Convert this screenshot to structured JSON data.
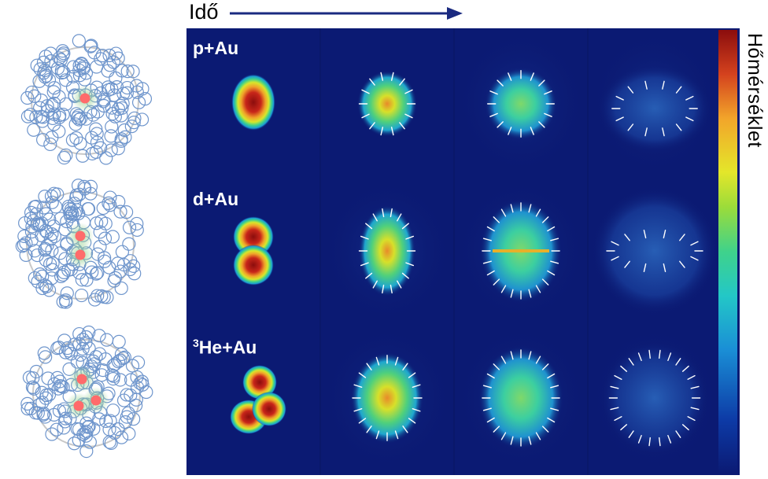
{
  "time_axis": {
    "label": "Idő"
  },
  "colorbar": {
    "label": "Hőmérséklet"
  },
  "rows": [
    {
      "label": "p+Au",
      "label_sup": ""
    },
    {
      "label": "d+Au",
      "label_sup": ""
    },
    {
      "label": "He+Au",
      "label_sup": "3"
    }
  ],
  "colors": {
    "background": "#0b1a73",
    "arrow": "#1a2a80",
    "nucleon_outline": "#6e95cc",
    "projectile_dot": "#ff6b6b",
    "hot_spot_halo": "#9fd49a"
  }
}
